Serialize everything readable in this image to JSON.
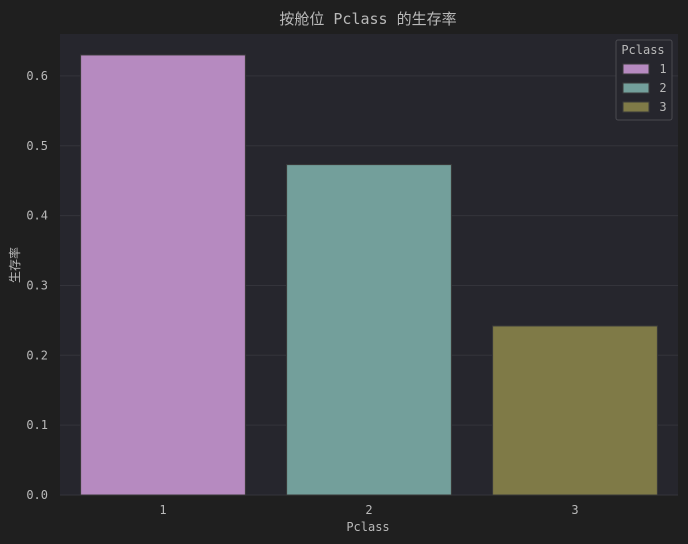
{
  "chart_data": {
    "type": "bar",
    "title": "按舱位 Pclass 的生存率",
    "xlabel": "Pclass",
    "ylabel": "生存率",
    "categories": [
      "1",
      "2",
      "3"
    ],
    "values": [
      0.63,
      0.473,
      0.242
    ],
    "ylim": [
      0,
      0.66
    ],
    "yticks": [
      "0.0",
      "0.1",
      "0.2",
      "0.3",
      "0.4",
      "0.5",
      "0.6"
    ],
    "grid": true,
    "legend": {
      "title": "Pclass",
      "placement": "top-right",
      "entries": [
        "1",
        "2",
        "3"
      ]
    },
    "colors": [
      "#b68ac0",
      "#739f9b",
      "#7f7a47"
    ]
  },
  "style": {
    "background": "#1f1f1f",
    "plot_background": "#26262d",
    "grid_color": "#34343b",
    "text_color": "#b9b9b9",
    "bar_edge": "#3a3a3a"
  }
}
